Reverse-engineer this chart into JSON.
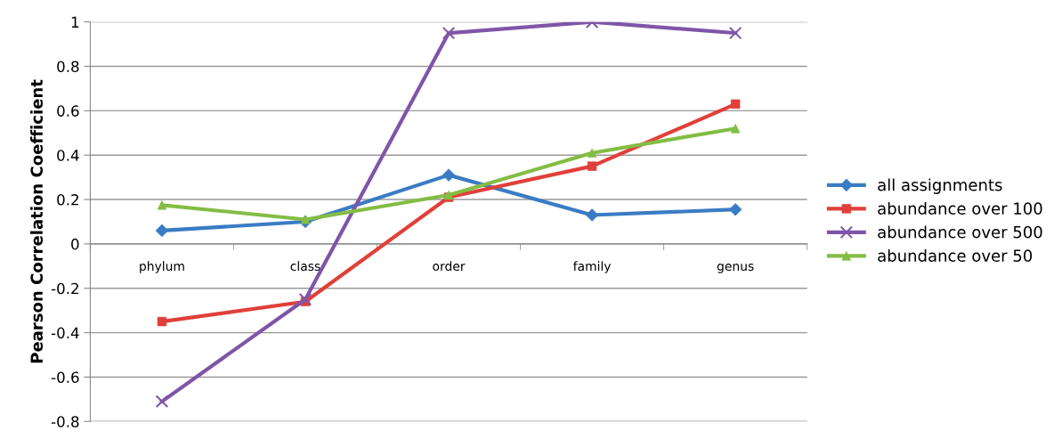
{
  "chart_data": {
    "type": "line",
    "ylabel": "Pearson Correlation Coefficient",
    "categories": [
      "phylum",
      "class",
      "order",
      "family",
      "genus"
    ],
    "series": [
      {
        "name": "all assignments",
        "color": "#3a7cc4",
        "marker": "diamond",
        "values": [
          0.06,
          0.1,
          0.31,
          0.13,
          0.155
        ]
      },
      {
        "name": "abundance over 100",
        "color": "#e0403a",
        "marker": "square",
        "values": [
          -0.35,
          -0.26,
          0.21,
          0.35,
          0.63
        ]
      },
      {
        "name": "abundance over 500",
        "color": "#7f55a8",
        "marker": "cross",
        "values": [
          -0.71,
          -0.25,
          0.95,
          1.0,
          0.95
        ]
      },
      {
        "name": "abundance over 50",
        "color": "#83bd44",
        "marker": "triangle",
        "values": [
          0.175,
          0.11,
          0.22,
          0.41,
          0.52
        ]
      }
    ],
    "ylim": [
      -0.8,
      1
    ],
    "yticks": [
      -0.8,
      -0.6,
      -0.4,
      -0.2,
      0,
      0.2,
      0.4,
      0.6,
      0.8,
      1
    ],
    "grid": "y",
    "legend": "right",
    "line_style": "solid"
  }
}
